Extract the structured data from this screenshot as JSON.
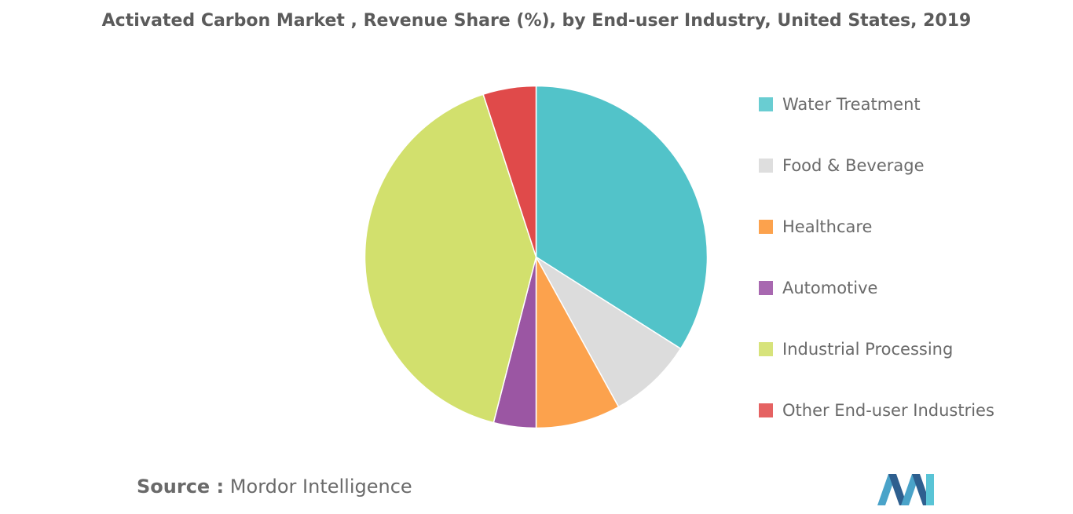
{
  "title": "Activated Carbon Market , Revenue Share (%), by End-user Industry, United States, 2019",
  "chart_data": {
    "type": "pie",
    "title": "Activated Carbon Market , Revenue Share (%), by End-user Industry, United States, 2019",
    "series": [
      {
        "name": "Water Treatment",
        "value": 34,
        "color": "#52c3c9"
      },
      {
        "name": "Food & Beverage",
        "value": 8,
        "color": "#dcdcdc"
      },
      {
        "name": "Healthcare",
        "value": 8,
        "color": "#fca24d"
      },
      {
        "name": "Automotive",
        "value": 4,
        "color": "#9b56a3"
      },
      {
        "name": "Industrial Processing",
        "value": 41,
        "color": "#d2e06d"
      },
      {
        "name": "Other End-user Industries",
        "value": 5,
        "color": "#e04a4a"
      }
    ],
    "start": "top",
    "direction": "clockwise",
    "legend": "right"
  },
  "legend": {
    "items": [
      "Water Treatment",
      "Food & Beverage",
      "Healthcare",
      "Automotive",
      "Industrial Processing",
      "Other End-user Industries"
    ]
  },
  "footer": {
    "source_label": "Source :",
    "source_text": "Mordor Intelligence",
    "logo": "mordor-intelligence-logo"
  }
}
